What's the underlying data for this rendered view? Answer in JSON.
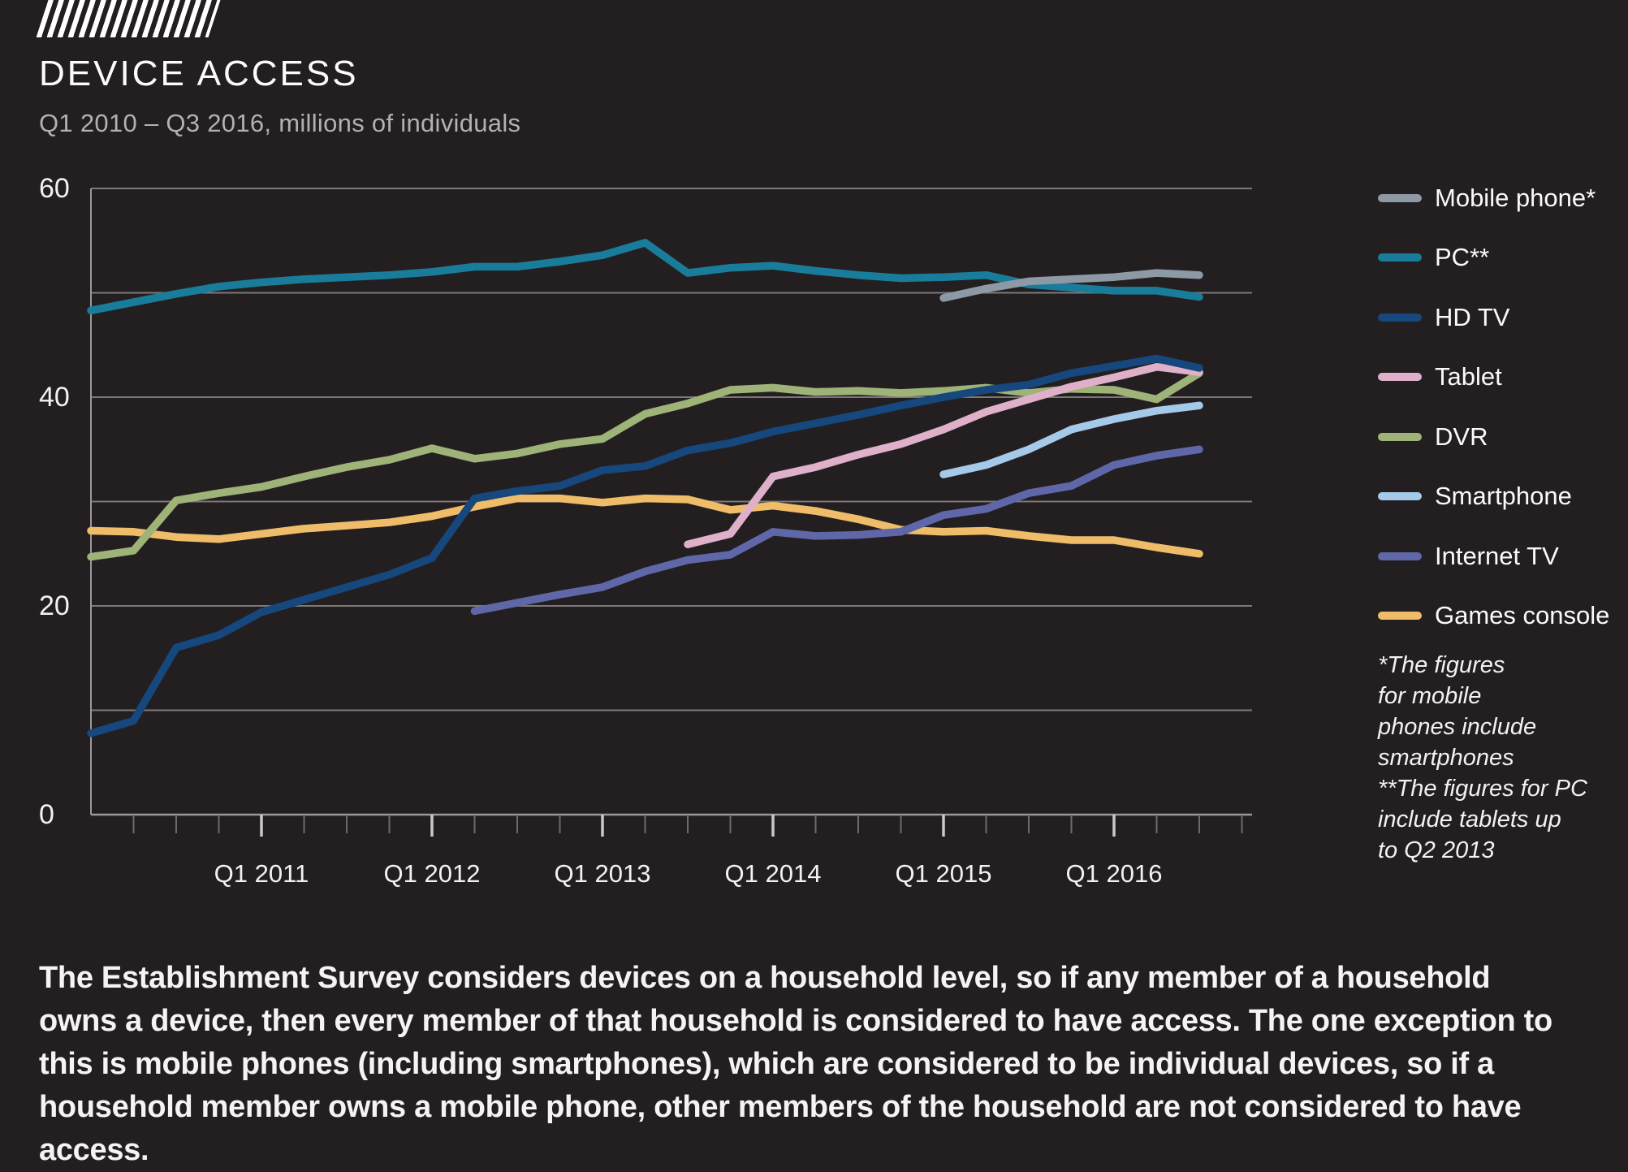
{
  "header": {
    "title": "DEVICE ACCESS",
    "subtitle": "Q1 2010 – Q3 2016, millions of individuals"
  },
  "chart_data": {
    "type": "line",
    "title": "DEVICE ACCESS",
    "subtitle": "Q1 2010 – Q3 2016, millions of individuals",
    "ylabel": "millions of individuals",
    "ylim": [
      0,
      60
    ],
    "ytick_labels": [
      0,
      20,
      40,
      60
    ],
    "gridlines_every": 10,
    "grid": true,
    "legend_position": "right",
    "x": [
      "Q1 2010",
      "Q2 2010",
      "Q3 2010",
      "Q4 2010",
      "Q1 2011",
      "Q2 2011",
      "Q3 2011",
      "Q4 2011",
      "Q1 2012",
      "Q2 2012",
      "Q3 2012",
      "Q4 2012",
      "Q1 2013",
      "Q2 2013",
      "Q3 2013",
      "Q4 2013",
      "Q1 2014",
      "Q2 2014",
      "Q3 2014",
      "Q4 2014",
      "Q1 2015",
      "Q2 2015",
      "Q3 2015",
      "Q4 2015",
      "Q1 2016",
      "Q2 2016",
      "Q3 2016"
    ],
    "xtick_labels": [
      "Q1 2011",
      "Q1 2012",
      "Q1 2013",
      "Q1 2014",
      "Q1 2015",
      "Q1 2016"
    ],
    "series": [
      {
        "name": "Mobile phone*",
        "color": "#8e99a6",
        "values": [
          null,
          null,
          null,
          null,
          null,
          null,
          null,
          null,
          null,
          null,
          null,
          null,
          null,
          null,
          null,
          null,
          null,
          null,
          null,
          null,
          49.5,
          50.4,
          51.1,
          51.3,
          51.5,
          51.9,
          51.7
        ]
      },
      {
        "name": "PC**",
        "color": "#1a7c9b",
        "values": [
          48.3,
          49.1,
          49.9,
          50.6,
          51.0,
          51.3,
          51.5,
          51.7,
          52.0,
          52.5,
          52.5,
          53.0,
          53.6,
          54.8,
          51.9,
          52.4,
          52.6,
          52.1,
          51.7,
          51.4,
          51.5,
          51.7,
          50.8,
          50.5,
          50.2,
          50.2,
          49.6
        ]
      },
      {
        "name": "HD TV",
        "color": "#16477d",
        "values": [
          7.8,
          9.0,
          16.0,
          17.2,
          19.4,
          20.6,
          21.8,
          23.0,
          24.6,
          30.3,
          31.0,
          31.5,
          33.0,
          33.4,
          34.9,
          35.6,
          36.7,
          37.5,
          38.3,
          39.2,
          40.0,
          40.7,
          41.2,
          42.3,
          43.0,
          43.7,
          42.8
        ]
      },
      {
        "name": "Tablet",
        "color": "#dfb0c9",
        "values": [
          null,
          null,
          null,
          null,
          null,
          null,
          null,
          null,
          null,
          null,
          null,
          null,
          null,
          null,
          25.9,
          26.9,
          32.4,
          33.3,
          34.5,
          35.5,
          36.9,
          38.6,
          39.8,
          41.0,
          41.9,
          42.9,
          42.4
        ]
      },
      {
        "name": "DVR",
        "color": "#9db377",
        "values": [
          24.7,
          25.3,
          30.1,
          30.8,
          31.4,
          32.4,
          33.3,
          34.0,
          35.1,
          34.1,
          34.6,
          35.5,
          36.0,
          38.4,
          39.4,
          40.7,
          40.9,
          40.5,
          40.6,
          40.4,
          40.6,
          40.9,
          40.4,
          40.8,
          40.7,
          39.8,
          42.3
        ]
      },
      {
        "name": "Smartphone",
        "color": "#a5c9e9",
        "values": [
          null,
          null,
          null,
          null,
          null,
          null,
          null,
          null,
          null,
          null,
          null,
          null,
          null,
          null,
          null,
          null,
          null,
          null,
          null,
          null,
          32.6,
          33.5,
          35.0,
          36.9,
          37.9,
          38.7,
          39.2
        ]
      },
      {
        "name": "Internet TV",
        "color": "#5f67a9",
        "values": [
          null,
          null,
          null,
          null,
          null,
          null,
          null,
          null,
          null,
          19.5,
          20.3,
          21.1,
          21.8,
          23.3,
          24.4,
          24.9,
          27.1,
          26.7,
          26.8,
          27.1,
          28.7,
          29.3,
          30.8,
          31.5,
          33.5,
          34.4,
          35.0
        ]
      },
      {
        "name": "Games console",
        "color": "#efbd69",
        "values": [
          27.2,
          27.1,
          26.6,
          26.4,
          26.9,
          27.4,
          27.7,
          28.0,
          28.6,
          29.5,
          30.3,
          30.3,
          29.9,
          30.3,
          30.2,
          29.2,
          29.6,
          29.1,
          28.3,
          27.3,
          27.1,
          27.2,
          26.7,
          26.3,
          26.3,
          25.6,
          25.0
        ]
      }
    ]
  },
  "footnote": {
    "lines": [
      "*The figures",
      "for mobile",
      "phones include",
      "smartphones",
      "**The figures for PC",
      "include tablets up",
      "to Q2 2013"
    ]
  },
  "paragraph": {
    "text": "The Establishment Survey considers devices on a household level, so if any member of a household owns a device, then every member of that household is considered to have access. The one exception to this is mobile phones (including smartphones), which are considered to be individual devices, so if a household member owns a mobile phone, other members of the household are not considered to have access."
  }
}
